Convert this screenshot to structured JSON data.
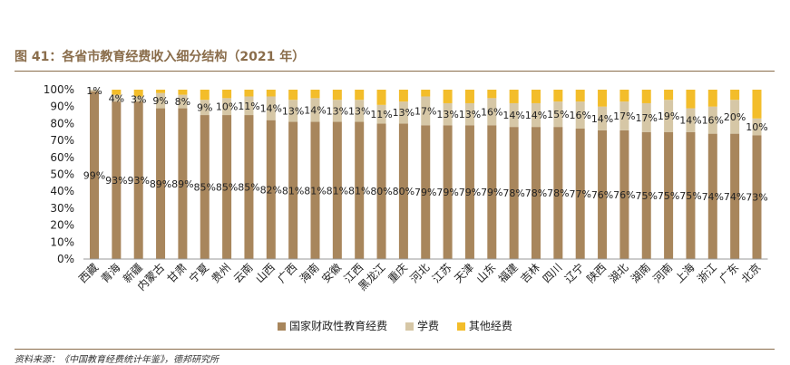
{
  "title": "图 41：各省市教育经费收入细分结构（2021 年）",
  "source": "资料来源：《中国教育经费统计年鉴》，德邦研究所",
  "colors": {
    "gov": "#a8865c",
    "tuition": "#d6c7a6",
    "other": "#f3bd2a"
  },
  "chart_data": {
    "type": "bar",
    "stacked": true,
    "categories": [
      "西藏",
      "青海",
      "新疆",
      "内蒙古",
      "甘肃",
      "宁夏",
      "贵州",
      "云南",
      "山西",
      "广西",
      "海南",
      "安徽",
      "江西",
      "黑龙江",
      "重庆",
      "河北",
      "江苏",
      "天津",
      "山东",
      "福建",
      "吉林",
      "四川",
      "辽宁",
      "陕西",
      "湖北",
      "湖南",
      "河南",
      "上海",
      "浙江",
      "广东",
      "北京"
    ],
    "series": [
      {
        "name": "国家财政性教育经费",
        "values": [
          99,
          93,
          93,
          89,
          89,
          85,
          85,
          85,
          82,
          81,
          81,
          81,
          81,
          80,
          80,
          79,
          79,
          79,
          79,
          78,
          78,
          78,
          77,
          76,
          76,
          75,
          75,
          75,
          74,
          74,
          73
        ],
        "labels": [
          "99%",
          "93%",
          "93%",
          "89%",
          "89%",
          "85%",
          "85%",
          "85%",
          "82%",
          "81%",
          "81%",
          "81%",
          "81%",
          "80%",
          "80%",
          "79%",
          "79%",
          "79%",
          "79%",
          "78%",
          "78%",
          "78%",
          "77%",
          "76%",
          "76%",
          "75%",
          "75%",
          "75%",
          "74%",
          "74%",
          "73%"
        ]
      },
      {
        "name": "学费",
        "values": [
          1,
          4,
          3,
          9,
          8,
          9,
          10,
          11,
          14,
          13,
          14,
          13,
          13,
          11,
          13,
          17,
          13,
          13,
          16,
          14,
          14,
          15,
          16,
          14,
          17,
          17,
          19,
          14,
          16,
          20,
          10
        ],
        "labels": [
          "1%",
          "4%",
          "3%",
          "9%",
          "8%",
          "9%",
          "10%",
          "11%",
          "14%",
          "13%",
          "14%",
          "13%",
          "13%",
          "11%",
          "13%",
          "17%",
          "13%",
          "13%",
          "16%",
          "14%",
          "14%",
          "15%",
          "16%",
          "14%",
          "17%",
          "17%",
          "19%",
          "14%",
          "16%",
          "20%",
          "10%"
        ]
      },
      {
        "name": "其他经费",
        "values": [
          0,
          3,
          4,
          2,
          3,
          6,
          5,
          4,
          4,
          6,
          5,
          6,
          6,
          9,
          7,
          4,
          8,
          8,
          5,
          8,
          8,
          7,
          7,
          10,
          7,
          8,
          6,
          11,
          10,
          6,
          17
        ]
      }
    ],
    "yticks": [
      "0%",
      "10%",
      "20%",
      "30%",
      "40%",
      "50%",
      "60%",
      "70%",
      "80%",
      "90%",
      "100%"
    ],
    "ylim": [
      0,
      100
    ],
    "legend_position": "bottom"
  }
}
